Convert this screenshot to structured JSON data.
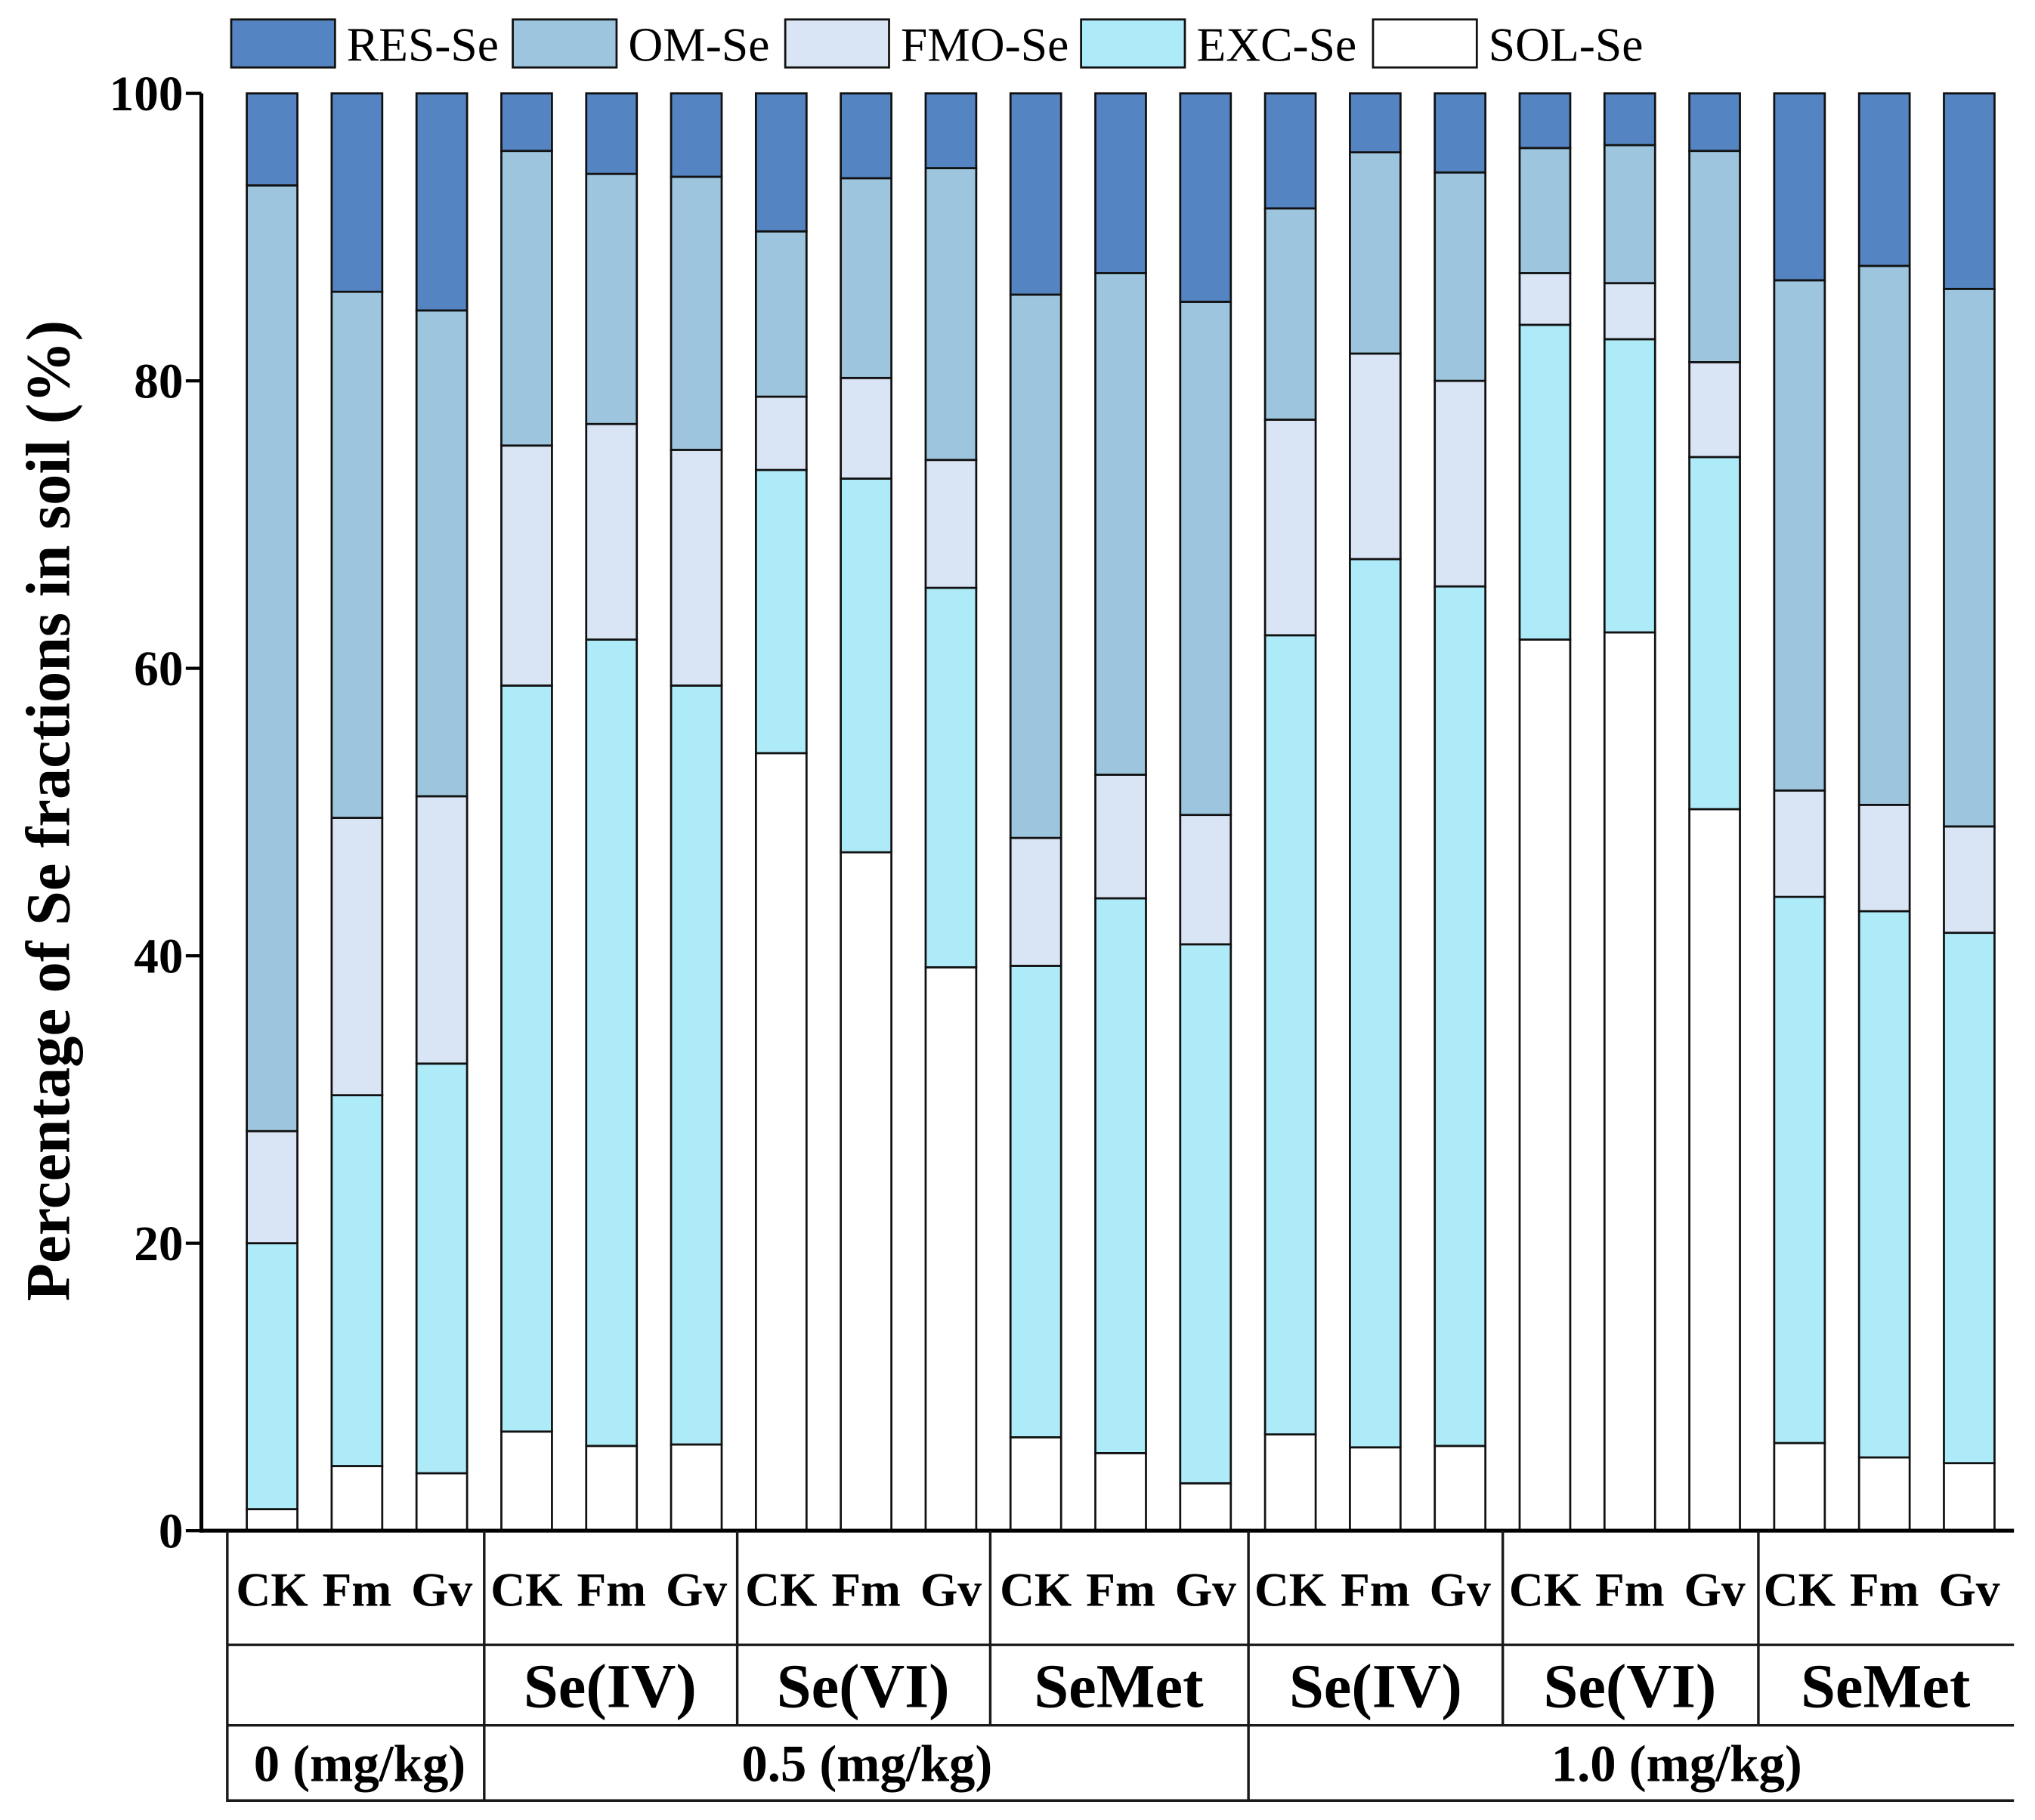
{
  "chart_data": {
    "type": "bar",
    "stacked": true,
    "ylabel": "Percentage of Se fractions in soil (%)",
    "ylim": [
      0,
      100
    ],
    "yticks": [
      0,
      20,
      40,
      60,
      80,
      100
    ],
    "categories": [
      "CK",
      "Fm",
      "Gv",
      "CK",
      "Fm",
      "Gv",
      "CK",
      "Fm",
      "Gv",
      "CK",
      "Fm",
      "Gv",
      "CK",
      "Fm",
      "Gv",
      "CK",
      "Fm",
      "Gv",
      "CK",
      "Fm",
      "Gv"
    ],
    "treatment_groups": [
      "Se(IV)",
      "Se(VI)",
      "SeMet",
      "Se(IV)",
      "Se(VI)",
      "SeMet"
    ],
    "dose_groups": [
      "0 (mg/kg)",
      "0.5 (mg/kg)",
      "1.0 (mg/kg)"
    ],
    "legend_position": "top",
    "series": [
      {
        "name": "SOL-Se",
        "color": "#ffffff",
        "values": [
          1.5,
          4.5,
          4.0,
          6.9,
          5.9,
          6.0,
          54.1,
          47.2,
          39.2,
          6.5,
          5.4,
          3.3,
          6.7,
          5.8,
          5.9,
          62.0,
          62.5,
          50.2,
          6.1,
          5.1,
          4.7
        ]
      },
      {
        "name": "EXC-Se",
        "color": "#aeebf9",
        "values": [
          18.5,
          25.8,
          28.5,
          51.9,
          56.1,
          52.8,
          19.7,
          26.0,
          26.4,
          32.8,
          38.6,
          37.5,
          55.6,
          61.8,
          59.8,
          21.9,
          20.4,
          24.5,
          38.0,
          38.0,
          36.9
        ]
      },
      {
        "name": "FMO-Se",
        "color": "#d9e4f5",
        "values": [
          7.8,
          19.3,
          18.6,
          16.7,
          15.0,
          16.4,
          5.1,
          7.0,
          8.9,
          8.9,
          8.6,
          9.0,
          15.0,
          14.3,
          14.3,
          3.6,
          3.9,
          6.6,
          7.4,
          7.4,
          7.4
        ]
      },
      {
        "name": "OM-Se",
        "color": "#9dc6de",
        "values": [
          65.8,
          36.6,
          33.8,
          20.5,
          17.4,
          19.0,
          11.5,
          13.9,
          20.3,
          37.8,
          34.9,
          35.7,
          14.7,
          14.0,
          14.5,
          8.7,
          9.6,
          14.7,
          35.5,
          37.5,
          37.4
        ]
      },
      {
        "name": "RES-Se",
        "color": "#5484c1",
        "values": [
          6.4,
          13.8,
          15.1,
          4.0,
          5.6,
          5.8,
          9.6,
          5.9,
          5.2,
          14.0,
          12.5,
          14.5,
          8.0,
          4.1,
          5.5,
          3.8,
          3.6,
          4.0,
          13.0,
          12.0,
          13.6
        ]
      }
    ]
  }
}
